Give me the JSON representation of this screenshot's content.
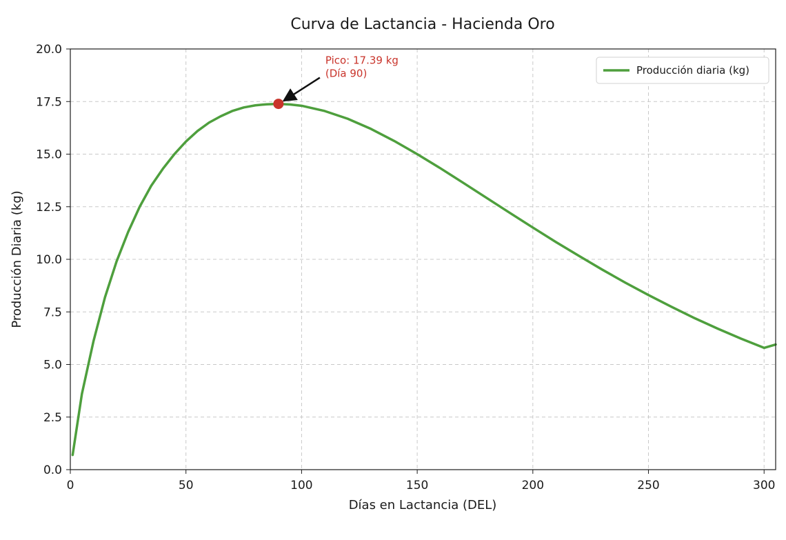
{
  "chart_data": {
    "type": "line",
    "title": "Curva de Lactancia - Hacienda Oro",
    "xlabel": "Días en Lactancia (DEL)",
    "ylabel": "Producción Diaria (kg)",
    "xlim": [
      0,
      305
    ],
    "ylim": [
      0,
      20
    ],
    "x_ticks": [
      0,
      50,
      100,
      150,
      200,
      250,
      300
    ],
    "x_tick_labels": [
      "0",
      "50",
      "100",
      "150",
      "200",
      "250",
      "300"
    ],
    "y_ticks": [
      0,
      2.5,
      5,
      7.5,
      10,
      12.5,
      15,
      17.5,
      20
    ],
    "y_tick_labels": [
      "0.0",
      "2.5",
      "5.0",
      "7.5",
      "10.0",
      "12.5",
      "15.0",
      "17.5",
      "20.0"
    ],
    "grid": true,
    "legend_position": "top-right",
    "series": [
      {
        "name": "Producción diaria (kg)",
        "color": "#4e9f3d",
        "x": [
          1,
          5,
          10,
          15,
          20,
          25,
          30,
          35,
          40,
          45,
          50,
          55,
          60,
          65,
          70,
          75,
          80,
          85,
          90,
          95,
          100,
          110,
          120,
          130,
          140,
          150,
          160,
          170,
          180,
          190,
          200,
          210,
          220,
          230,
          240,
          250,
          260,
          270,
          280,
          290,
          300,
          305
        ],
        "y": [
          0.7,
          3.6,
          6.1,
          8.2,
          9.9,
          11.3,
          12.5,
          13.5,
          14.3,
          15.0,
          15.6,
          16.1,
          16.5,
          16.8,
          17.05,
          17.22,
          17.32,
          17.37,
          17.39,
          17.36,
          17.3,
          17.05,
          16.68,
          16.2,
          15.63,
          15.0,
          14.33,
          13.63,
          12.92,
          12.21,
          11.51,
          10.82,
          10.16,
          9.51,
          8.89,
          8.3,
          7.74,
          7.2,
          6.7,
          6.23,
          5.79,
          5.95
        ]
      }
    ],
    "annotations": [
      {
        "text_line1": "Pico: 17.39 kg",
        "text_line2": "(Día 90)",
        "x": 90,
        "y": 17.39,
        "color": "#c9342b",
        "marker_color": "#c9342b"
      }
    ]
  }
}
